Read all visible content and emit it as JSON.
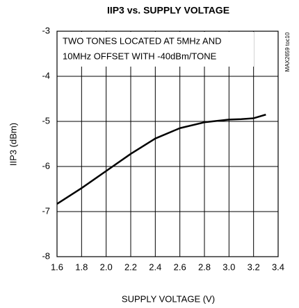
{
  "chart_data": {
    "type": "line",
    "title": "IIP3 vs. SUPPLY VOLTAGE",
    "xlabel": "SUPPLY VOLTAGE (V)",
    "ylabel": "IIP3 (dBm)",
    "annotation": [
      "TWO TONES LOCATED AT 5MHz AND",
      "10MHz OFFSET WITH -40dBm/TONE"
    ],
    "side_note": "MAX2659 toc10",
    "x": [
      1.6,
      1.8,
      2.0,
      2.2,
      2.4,
      2.6,
      2.8,
      3.0,
      3.1,
      3.2,
      3.3
    ],
    "series": [
      {
        "name": "IIP3",
        "color": "#000000",
        "values": [
          -6.83,
          -6.48,
          -6.1,
          -5.72,
          -5.38,
          -5.15,
          -5.02,
          -4.96,
          -4.95,
          -4.93,
          -4.85
        ]
      }
    ],
    "xlim": [
      1.6,
      3.4
    ],
    "xticks": [
      1.6,
      1.8,
      {
        "value": 2.0,
        "label": "2.0"
      },
      2.2,
      2.4,
      2.6,
      2.8,
      {
        "value": 3.0,
        "label": "3.0"
      },
      3.2,
      3.4
    ],
    "ylim": [
      -8,
      -3
    ],
    "yticks": [
      -3,
      -4,
      -5,
      -6,
      -7,
      -8
    ],
    "grid": true
  }
}
